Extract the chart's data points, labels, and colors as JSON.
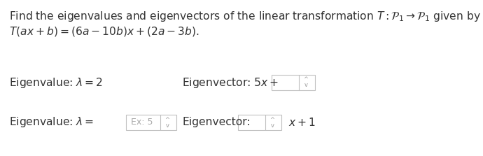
{
  "bg_color": "#ffffff",
  "text_color": "#333333",
  "gray_text": "#aaaaaa",
  "spinner_color": "#999999",
  "box_border_color": "#c0c0c0",
  "box_fill_color": "#ffffff",
  "box_fill_gray": "#f8f8f8",
  "font_size": 11.2,
  "font_size_small": 9.0,
  "fig_width": 6.9,
  "fig_height": 2.23,
  "dpi": 100,
  "line1": "Find the eigenvalues and eigenvectors of the linear transformation $T : \\mathcal{P}_1 \\rightarrow \\mathcal{P}_1$ given by",
  "line2": "$T(ax + b) = (6a - 10b)x + (2a - 3b).$",
  "row1_left": "Eigenvalue: $\\lambda = 2$",
  "row1_right_text": "Eigenvector: $5x+$",
  "row2_left_text": "Eigenvalue: $\\lambda =$",
  "row2_placeholder": "Ex: 5",
  "row2_right_label": "Eigenvector:",
  "row2_right_suffix": "$x + 1$"
}
